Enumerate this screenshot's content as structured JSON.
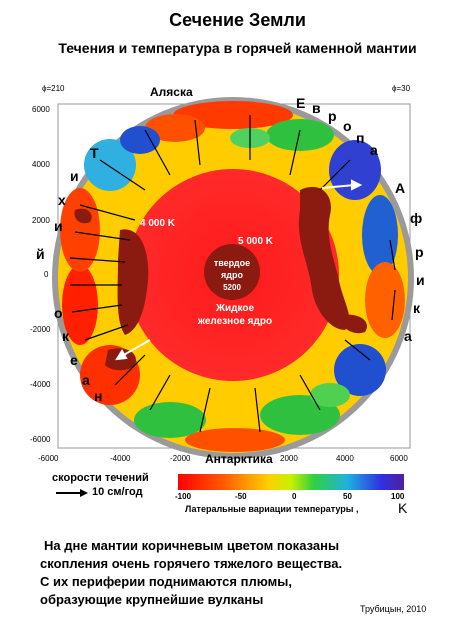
{
  "title": "Сечение  Земли",
  "subtitle": "Течения и температура в горячей каменной мантии",
  "phi_left": "ϕ=210",
  "phi_right": "ϕ=30",
  "axis_y_ticks": [
    "6000",
    "4000",
    "2000",
    "0",
    "-2000",
    "-4000",
    "-6000"
  ],
  "axis_x_ticks": [
    "-6000",
    "-4000",
    "-2000",
    "0",
    "2000",
    "4000",
    "6000"
  ],
  "labels": {
    "alaska": "Аляска",
    "antarctica": "Антарктика",
    "temp_4000": "4 000 K",
    "temp_5000": "5 000 K",
    "inner_core_1": "твердое",
    "inner_core_2": "ядро",
    "inner_core_temp": "5200",
    "outer_core_1": "Жидкое",
    "outer_core_2": "железное ядро"
  },
  "europe_letters": [
    "Е",
    "в",
    "р",
    "о",
    "п",
    "а"
  ],
  "africa_letters": [
    "А",
    "ф",
    "р",
    "и",
    "к",
    "а"
  ],
  "pacific_letters": [
    "Т",
    "и",
    "х",
    "и",
    "й",
    "о",
    "к",
    "е",
    "а",
    "н"
  ],
  "legend": {
    "speed_title": "скорости течений",
    "speed_value": "10 см/год",
    "colorbar_ticks": [
      "-100",
      "-50",
      "0",
      "50",
      "100"
    ],
    "colorbar_label": "Латеральные вариации температуры ,",
    "colorbar_unit": "K"
  },
  "caption": [
    "На дне мантии коричневым цветом показаны",
    "скопления очень горячего тяжелого вещества.",
    "С их периферии поднимаются   плюмы,",
    "образующие крупнейшие вулканы"
  ],
  "credit": "Трубицын, 2010",
  "colors": {
    "core": "#ff2020",
    "mantle_hot": "#ff3000",
    "mantle_warm": "#ffdd00",
    "mantle_neutral": "#22cc22",
    "mantle_cold": "#2233dd",
    "hot_pile": "#8b1a10"
  }
}
